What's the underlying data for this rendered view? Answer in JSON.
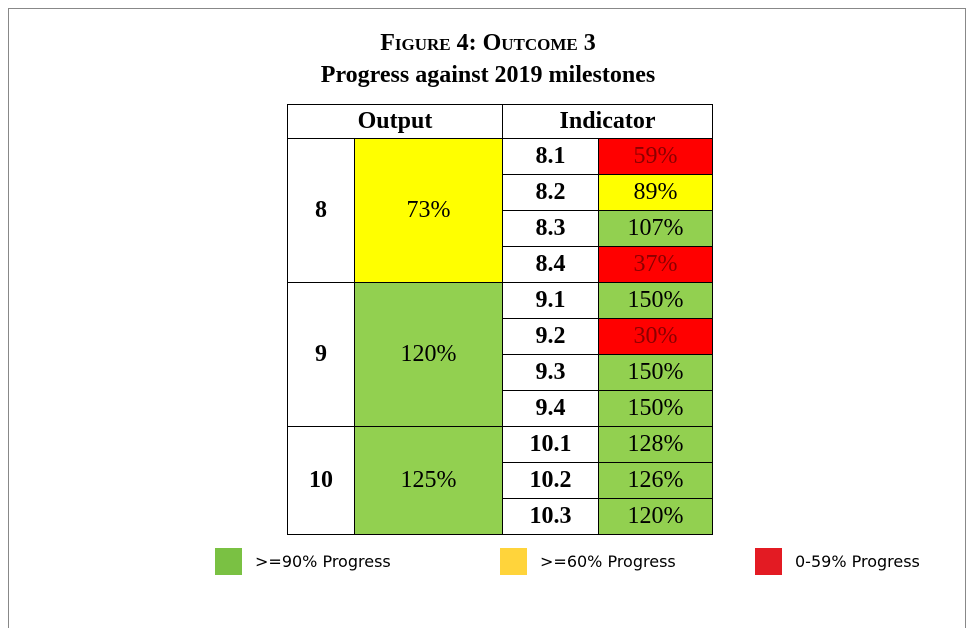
{
  "header": {
    "title": "Figure 4: Outcome 3",
    "subtitle": "Progress against 2019 milestones"
  },
  "table": {
    "columns": [
      "Output",
      "Indicator"
    ],
    "groups": [
      {
        "output": "8",
        "progress": "73%",
        "color": "#ffff00",
        "indicators": [
          {
            "id": "8.1",
            "progress": "59%",
            "color": "#ff0000"
          },
          {
            "id": "8.2",
            "progress": "89%",
            "color": "#ffff00"
          },
          {
            "id": "8.3",
            "progress": "107%",
            "color": "#92d050"
          },
          {
            "id": "8.4",
            "progress": "37%",
            "color": "#ff0000"
          }
        ]
      },
      {
        "output": "9",
        "progress": "120%",
        "color": "#92d050",
        "indicators": [
          {
            "id": "9.1",
            "progress": "150%",
            "color": "#92d050"
          },
          {
            "id": "9.2",
            "progress": "30%",
            "color": "#ff0000"
          },
          {
            "id": "9.3",
            "progress": "150%",
            "color": "#92d050"
          },
          {
            "id": "9.4",
            "progress": "150%",
            "color": "#92d050"
          }
        ]
      },
      {
        "output": "10",
        "progress": "125%",
        "color": "#92d050",
        "indicators": [
          {
            "id": "10.1",
            "progress": "128%",
            "color": "#92d050"
          },
          {
            "id": "10.2",
            "progress": "126%",
            "color": "#92d050"
          },
          {
            "id": "10.3",
            "progress": "120%",
            "color": "#92d050"
          }
        ]
      }
    ]
  },
  "legend": [
    {
      "label": ">=90% Progress",
      "color": "#7ac143"
    },
    {
      "label": ">=60% Progress",
      "color": "#ffd43b"
    },
    {
      "label": "0-59% Progress",
      "color": "#e31b23"
    }
  ]
}
